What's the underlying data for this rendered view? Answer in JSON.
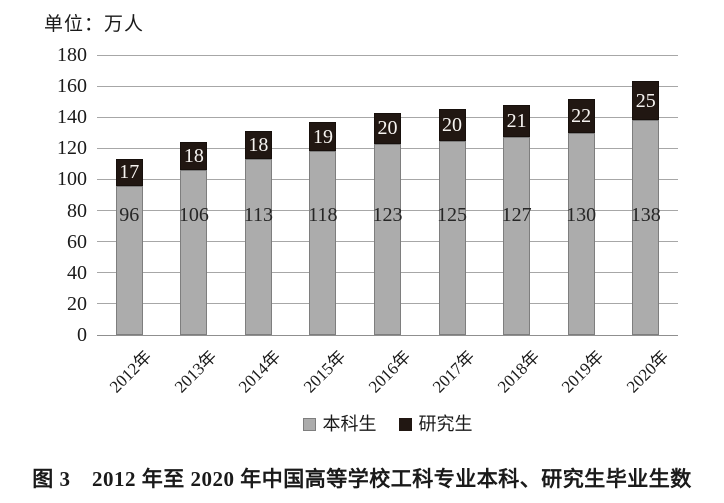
{
  "page": {
    "caption": "图 3　2012 年至 2020 年中国高等学校工科专业本科、研究生毕业生数"
  },
  "chart_data": {
    "type": "bar",
    "stacked": true,
    "unit_label": "单位：万人",
    "categories": [
      "2012年",
      "2013年",
      "2014年",
      "2015年",
      "2016年",
      "2017年",
      "2018年",
      "2019年",
      "2020年"
    ],
    "series": [
      {
        "name": "本科生",
        "color": "#acacac",
        "values": [
          96,
          106,
          113,
          118,
          123,
          125,
          127,
          130,
          138
        ]
      },
      {
        "name": "研究生",
        "color": "#211712",
        "values": [
          17,
          18,
          18,
          19,
          20,
          20,
          21,
          22,
          25
        ]
      }
    ],
    "totals": [
      113,
      124,
      131,
      137,
      143,
      145,
      148,
      152,
      163
    ],
    "ylim": [
      0,
      180
    ],
    "yticks": [
      0,
      20,
      40,
      60,
      80,
      100,
      120,
      140,
      160,
      180
    ],
    "grid": true,
    "value_labels": true,
    "legend_position": "bottom",
    "xlabel": "",
    "ylabel": "万人"
  }
}
